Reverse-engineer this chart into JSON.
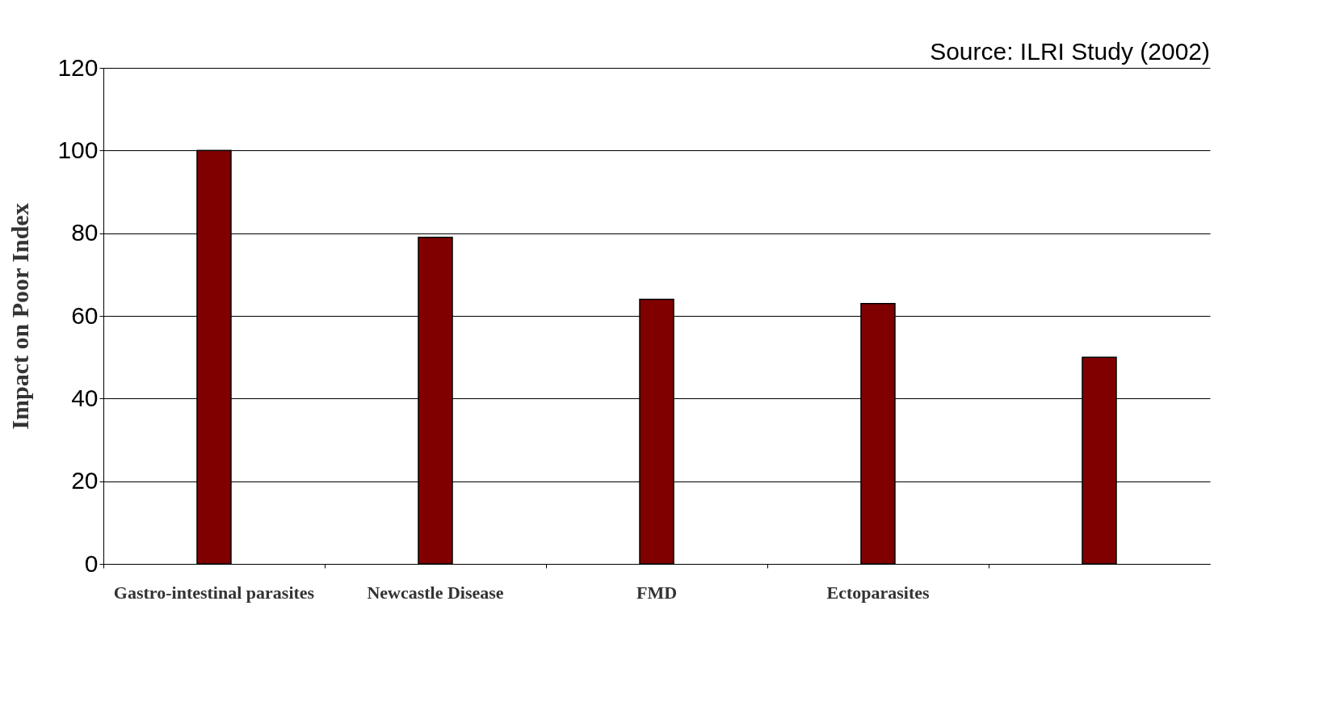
{
  "chart_data": {
    "type": "bar",
    "categories": [
      "Gastro-intestinal parasites",
      "Newcastle Disease",
      "FMD",
      "Ectoparasites",
      null
    ],
    "values": [
      100,
      79,
      64,
      63,
      50
    ],
    "color": "#800000",
    "ylabel": "Impact on Poor Index",
    "ylim": [
      0,
      120
    ],
    "yticks": [
      0,
      20,
      40,
      60,
      80,
      100,
      120
    ],
    "grid": "y",
    "annotations": [
      "Source: ILRI Study (2002)"
    ]
  }
}
